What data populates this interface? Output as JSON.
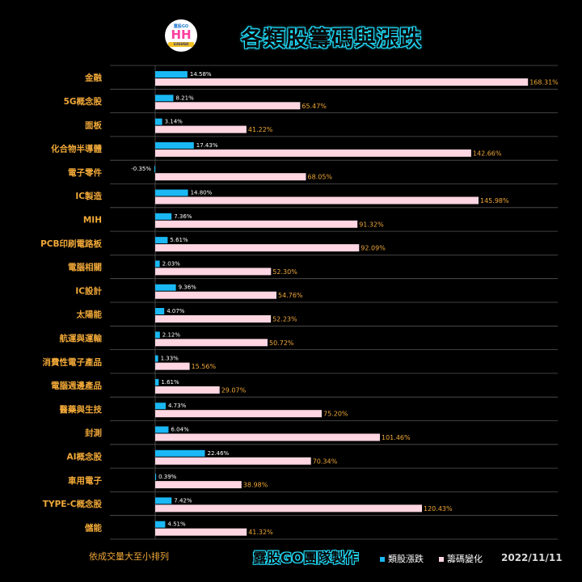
{
  "header": {
    "title": "各類股籌碼與漲跌",
    "logo_top": "露股GO",
    "logo_mark": "HH",
    "logo_bottom": "LUGUGO"
  },
  "footer": {
    "note": "依成交量大至小排列",
    "team": "露股GO團隊製作",
    "date": "2022/11/11"
  },
  "colors": {
    "change": "#1ab8f5",
    "chip": "#ffd6e2",
    "label": "#f0a838",
    "chip_value": "#f0a838",
    "change_value": "#ffffff",
    "grid": "#555555"
  },
  "chart_data": {
    "type": "bar",
    "orientation": "horizontal",
    "title": "各類股籌碼與漲跌",
    "categories": [
      "金融",
      "5G概念股",
      "面板",
      "化合物半導體",
      "電子零件",
      "IC製造",
      "MIH",
      "PCB印刷電路板",
      "電腦相關",
      "IC設計",
      "太陽能",
      "航運與運輸",
      "消費性電子產品",
      "電腦週邊產品",
      "醫藥與生技",
      "封測",
      "AI概念股",
      "車用電子",
      "TYPE-C概念股",
      "儲能"
    ],
    "series": [
      {
        "name": "類股漲跌",
        "values": [
          14.58,
          8.21,
          3.14,
          17.43,
          -0.35,
          14.8,
          7.36,
          5.61,
          2.03,
          9.36,
          4.07,
          2.12,
          1.33,
          1.61,
          4.73,
          6.04,
          22.46,
          0.39,
          7.42,
          4.51
        ],
        "labels": [
          "14.58%",
          "8.21%",
          "3.14%",
          "17.43%",
          "-0.35%",
          "14.80%",
          "7.36%",
          "5.61%",
          "2.03%",
          "9.36%",
          "4.07%",
          "2.12%",
          "1.33%",
          "1.61%",
          "4.73%",
          "6.04%",
          "22.46%",
          "0.39%",
          "7.42%",
          "4.51%"
        ]
      },
      {
        "name": "籌碼變化",
        "values": [
          168.31,
          65.47,
          41.22,
          142.66,
          68.05,
          145.98,
          91.32,
          92.09,
          52.3,
          54.76,
          52.23,
          50.72,
          15.56,
          29.07,
          75.2,
          101.46,
          70.34,
          38.98,
          120.43,
          41.32
        ],
        "labels": [
          "168.31%",
          "65.47%",
          "41.22%",
          "142.66%",
          "68.05%",
          "145.98%",
          "91.32%",
          "92.09%",
          "52.30%",
          "54.76%",
          "52.23%",
          "50.72%",
          "15.56%",
          "29.07%",
          "75.20%",
          "101.46%",
          "70.34%",
          "38.98%",
          "120.43%",
          "41.32%"
        ]
      }
    ],
    "xlim": [
      0,
      170
    ],
    "legend_position": "bottom-right",
    "grid": true
  }
}
